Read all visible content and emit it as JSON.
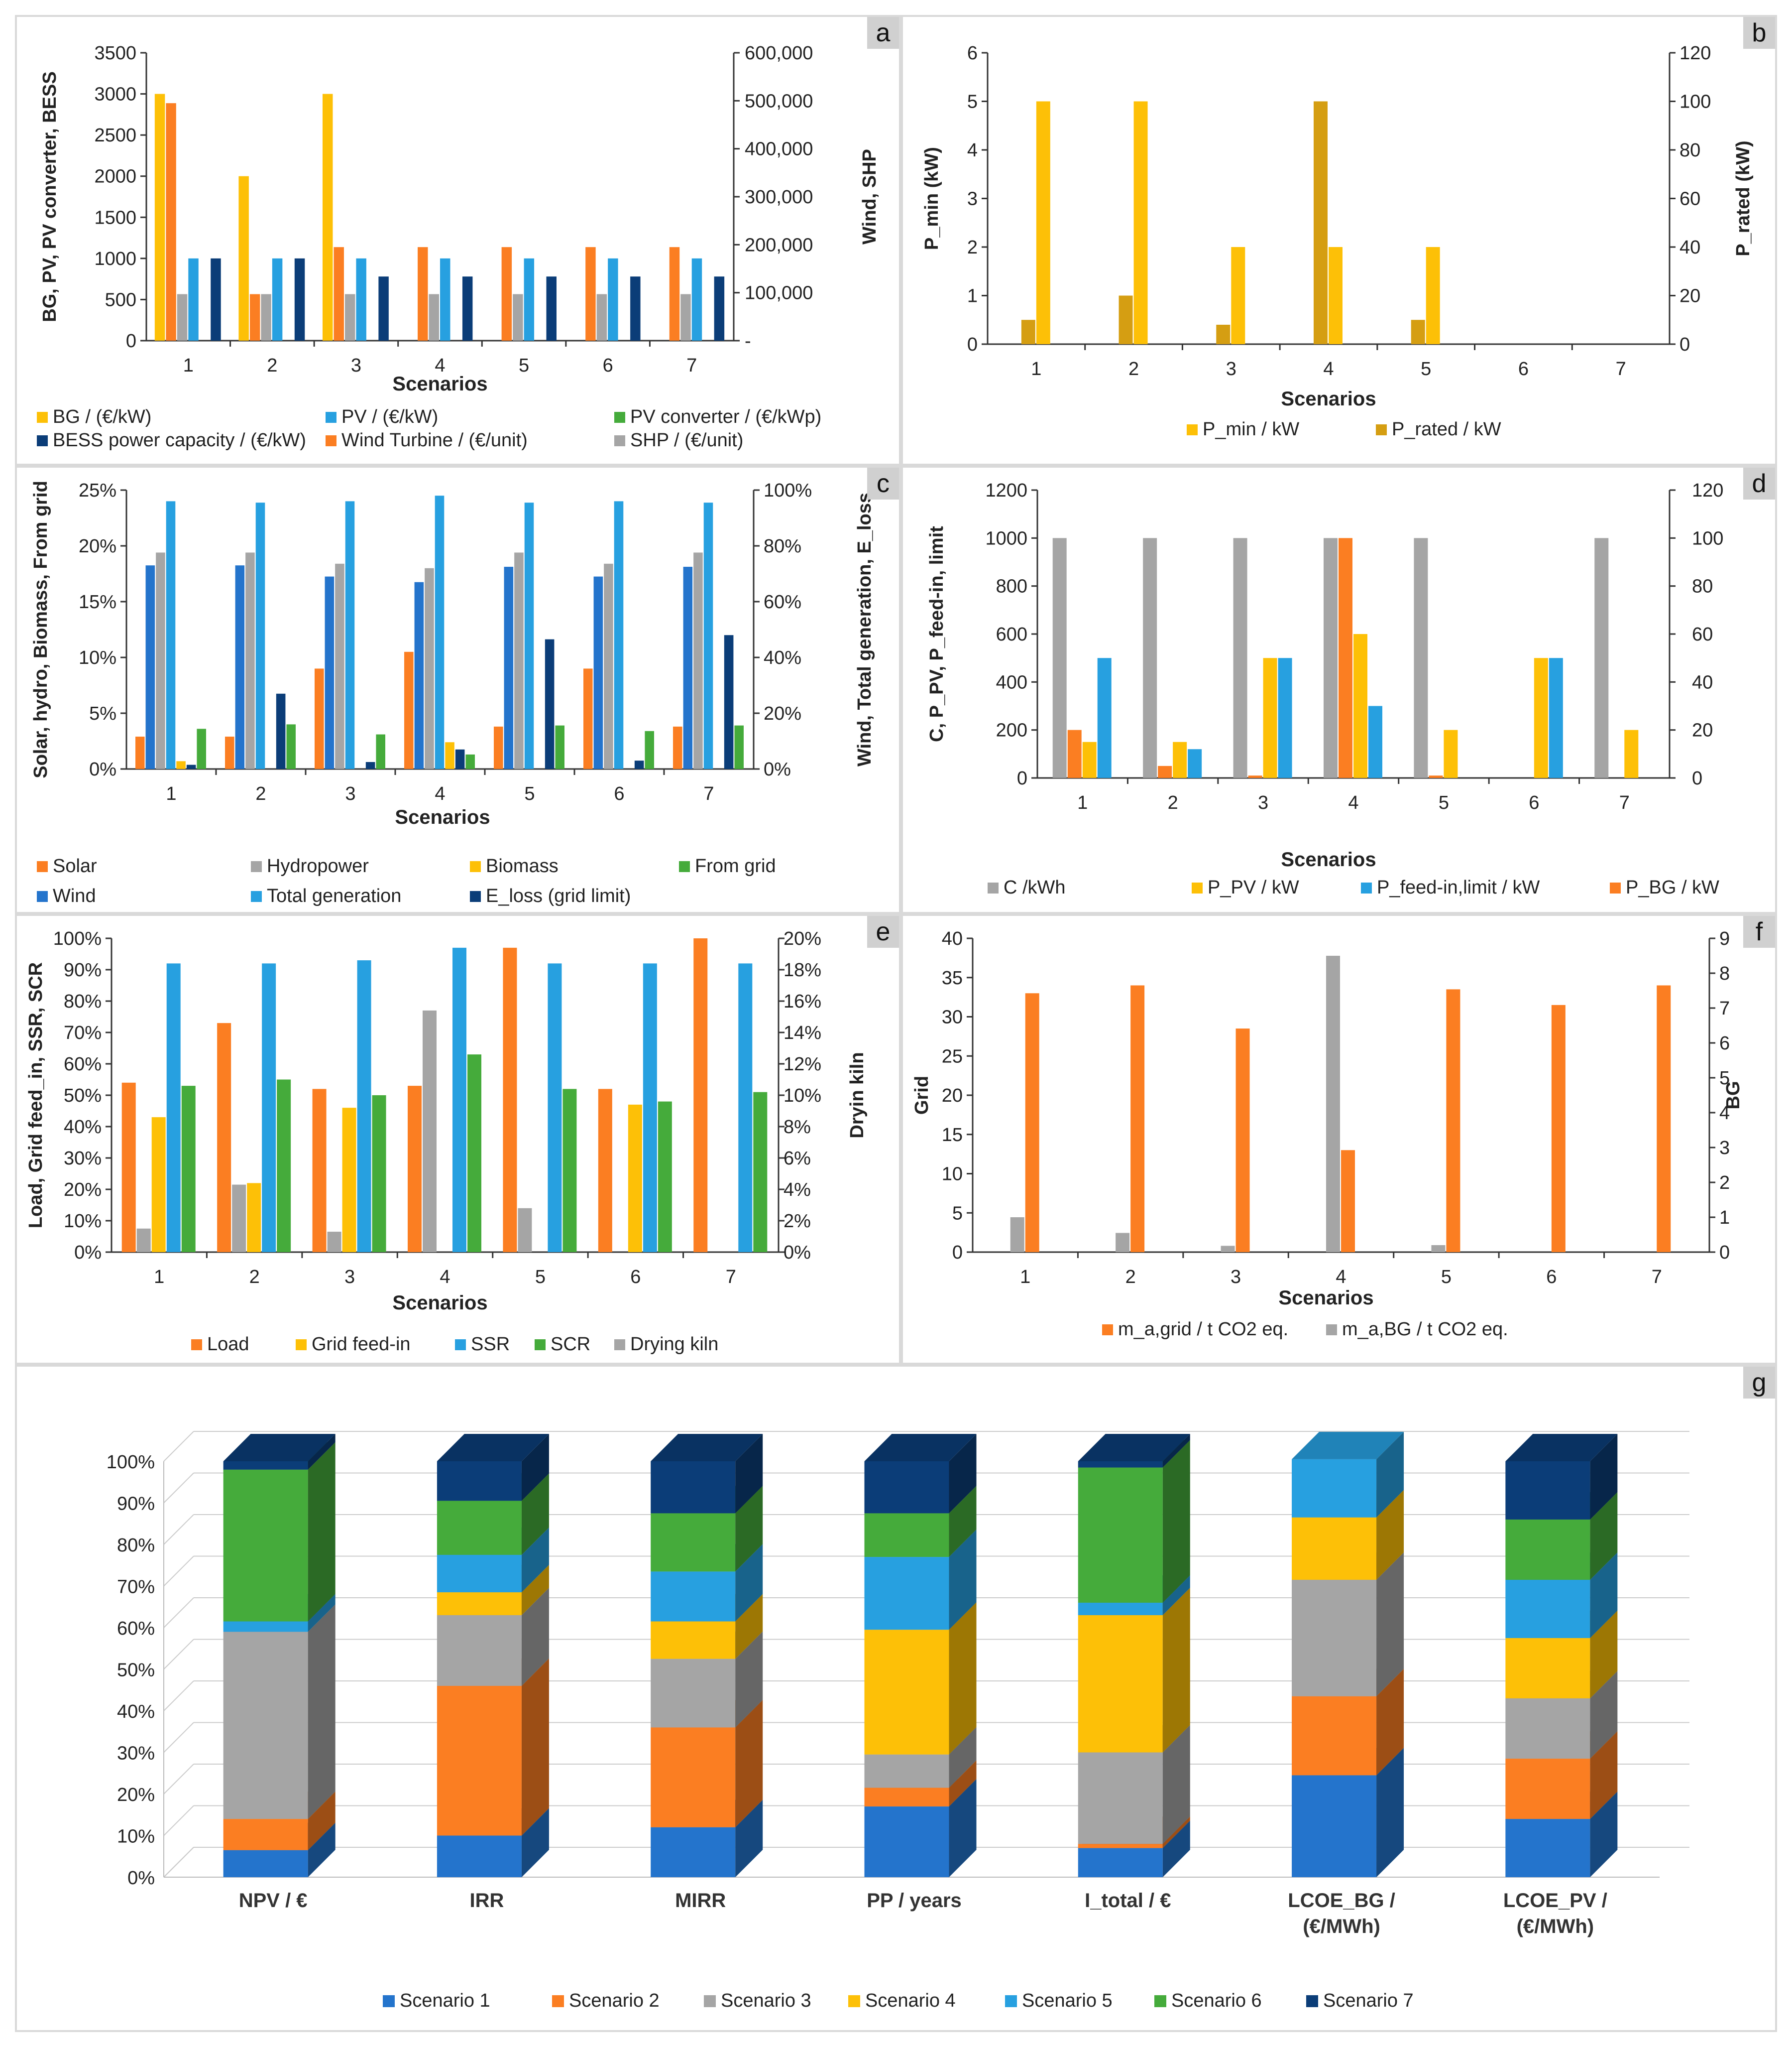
{
  "colors": {
    "orange": "#fb7e22",
    "grey": "#a5a5a5",
    "yellow": "#fdc007",
    "green": "#45ab3b",
    "blue": "#2474cc",
    "lightblue": "#27a0e0",
    "navy": "#0b3d78",
    "mustard": "#d59e12"
  },
  "chart_data": [
    {
      "id": "a",
      "type": "bar",
      "panel_label": "a",
      "xlabel": "Scenarios",
      "ylabel": "BG, PV, PV converter, BESS",
      "y2label": "Wind, SHP",
      "categories": [
        "1",
        "2",
        "3",
        "4",
        "5",
        "6",
        "7"
      ],
      "yticks": [
        "0",
        "500",
        "1000",
        "1500",
        "2000",
        "2500",
        "3000",
        "3500"
      ],
      "ylim": [
        0,
        3500
      ],
      "y2ticks": [
        "-",
        "100,000",
        "200,000",
        "300,000",
        "400,000",
        "500,000",
        "600,000"
      ],
      "y2lim": [
        0,
        600000
      ],
      "series": [
        {
          "name": "BG / (€/kW)",
          "color": "#fdc007",
          "axis": "left",
          "values": [
            3000,
            2000,
            3000,
            0,
            0,
            0,
            0
          ]
        },
        {
          "name": "Wind Turbine / (€/unit)",
          "color": "#fb7e22",
          "axis": "right",
          "values": [
            495000,
            97000,
            195000,
            195000,
            195000,
            195000,
            195000
          ]
        },
        {
          "name": "SHP / (€/unit)",
          "color": "#a5a5a5",
          "axis": "right",
          "values": [
            97000,
            97000,
            97000,
            97000,
            97000,
            97000,
            97000
          ]
        },
        {
          "name": "PV / (€/kW)",
          "color": "#27a0e0",
          "axis": "left",
          "values": [
            1000,
            1000,
            1000,
            1000,
            1000,
            1000,
            1000
          ]
        },
        {
          "name": "PV converter / (€/kWp)",
          "color": "#45ab3b",
          "axis": "left",
          "values": [
            0,
            0,
            0,
            0,
            0,
            0,
            0
          ]
        },
        {
          "name": "BESS power capacity / (€/kW)",
          "color": "#0b3d78",
          "axis": "left",
          "values": [
            1000,
            1000,
            780,
            780,
            780,
            780,
            780
          ]
        }
      ],
      "legend": [
        [
          "BG / (€/kW)",
          "#fdc007"
        ],
        [
          "PV / (€/kW)",
          "#27a0e0"
        ],
        [
          "PV converter / (€/kWp)",
          "#45ab3b"
        ],
        [
          "BESS power capacity / (€/kW)",
          "#0b3d78"
        ],
        [
          "Wind Turbine / (€/unit)",
          "#fb7e22"
        ],
        [
          "SHP / (€/unit)",
          "#a5a5a5"
        ]
      ]
    },
    {
      "id": "b",
      "type": "bar",
      "panel_label": "b",
      "xlabel": "Scenarios",
      "ylabel": "P_min (kW)",
      "y2label": "P_rated (kW)",
      "categories": [
        "1",
        "2",
        "3",
        "4",
        "5",
        "6",
        "7"
      ],
      "yticks": [
        "0",
        "1",
        "2",
        "3",
        "4",
        "5",
        "6"
      ],
      "ylim": [
        0,
        6
      ],
      "y2ticks": [
        "0",
        "20",
        "40",
        "60",
        "80",
        "100",
        "120"
      ],
      "y2lim": [
        0,
        120
      ],
      "series": [
        {
          "name": "P_rated / kW",
          "color": "#d59e12",
          "axis": "right",
          "values": [
            10,
            20,
            8,
            100,
            10,
            0,
            0
          ]
        },
        {
          "name": "P_min / kW",
          "color": "#fdc007",
          "axis": "left",
          "values": [
            5,
            5,
            2,
            2,
            2,
            0,
            0
          ]
        }
      ],
      "legend": [
        [
          "P_min / kW",
          "#fdc007"
        ],
        [
          "P_rated / kW",
          "#d59e12"
        ]
      ]
    },
    {
      "id": "c",
      "type": "bar",
      "panel_label": "c",
      "xlabel": "Scenarios",
      "ylabel": "Solar, hydro, Biomass, From grid",
      "y2label": "Wind, Total generation, E_loss",
      "categories": [
        "1",
        "2",
        "3",
        "4",
        "5",
        "6",
        "7"
      ],
      "yticks": [
        "0%",
        "5%",
        "10%",
        "15%",
        "20%",
        "25%"
      ],
      "ylim": [
        0,
        25
      ],
      "y2ticks": [
        "0%",
        "20%",
        "40%",
        "60%",
        "80%",
        "100%"
      ],
      "y2lim": [
        0,
        100
      ],
      "series": [
        {
          "name": "Solar",
          "color": "#fb7e22",
          "axis": "left",
          "values": [
            2.9,
            2.9,
            9,
            10.5,
            3.8,
            9,
            3.8
          ]
        },
        {
          "name": "Wind",
          "color": "#2474cc",
          "axis": "right",
          "values": [
            73,
            73,
            69,
            67,
            72.5,
            69,
            72.5
          ]
        },
        {
          "name": "Hydropower",
          "color": "#a5a5a5",
          "axis": "left",
          "values": [
            19.4,
            19.4,
            18.4,
            18,
            19.4,
            18.4,
            19.4
          ]
        },
        {
          "name": "Total generation",
          "color": "#27a0e0",
          "axis": "right",
          "values": [
            96,
            95.5,
            96,
            98,
            95.5,
            96,
            95.5
          ]
        },
        {
          "name": "Biomass",
          "color": "#fdc007",
          "axis": "left",
          "values": [
            0.7,
            0,
            0,
            2.4,
            0,
            0,
            0
          ]
        },
        {
          "name": "E_loss (grid limit)",
          "color": "#0b3d78",
          "axis": "right",
          "values": [
            1.5,
            27,
            2.5,
            7,
            46.5,
            3,
            48
          ]
        },
        {
          "name": "From grid",
          "color": "#45ab3b",
          "axis": "left",
          "values": [
            3.6,
            4,
            3.1,
            1.3,
            3.9,
            3.4,
            3.9
          ]
        }
      ],
      "legend": [
        [
          "Solar",
          "#fb7e22"
        ],
        [
          "Hydropower",
          "#a5a5a5"
        ],
        [
          "Biomass",
          "#fdc007"
        ],
        [
          "From grid",
          "#45ab3b"
        ],
        [
          "Wind",
          "#2474cc"
        ],
        [
          "Total generation",
          "#27a0e0"
        ],
        [
          "E_loss (grid limit)",
          "#0b3d78"
        ]
      ]
    },
    {
      "id": "d",
      "type": "bar",
      "panel_label": "d",
      "xlabel": "Scenarios",
      "ylabel": "C, P_PV, P_feed-in, limit",
      "y2label": "",
      "categories": [
        "1",
        "2",
        "3",
        "4",
        "5",
        "6",
        "7"
      ],
      "yticks": [
        "0",
        "200",
        "400",
        "600",
        "800",
        "1000",
        "1200"
      ],
      "ylim": [
        0,
        1200
      ],
      "y2ticks": [
        "0",
        "20",
        "40",
        "60",
        "80",
        "100",
        "120"
      ],
      "y2lim": [
        0,
        120
      ],
      "series": [
        {
          "name": "C /kWh",
          "color": "#a5a5a5",
          "axis": "left",
          "values": [
            1000,
            1000,
            1000,
            1000,
            1000,
            0,
            1000
          ]
        },
        {
          "name": "P_BG / kW",
          "color": "#fb7e22",
          "axis": "right",
          "values": [
            20,
            5,
            1,
            100,
            1,
            0,
            0
          ]
        },
        {
          "name": "P_PV / kW",
          "color": "#fdc007",
          "axis": "left",
          "values": [
            150,
            150,
            500,
            600,
            200,
            500,
            200
          ]
        },
        {
          "name": "P_feed-in,limit / kW",
          "color": "#27a0e0",
          "axis": "left",
          "values": [
            500,
            120,
            500,
            300,
            0,
            500,
            0
          ]
        }
      ],
      "legend": [
        [
          "C /kWh",
          "#a5a5a5"
        ],
        [
          "P_PV / kW",
          "#fdc007"
        ],
        [
          "P_feed-in,limit / kW",
          "#27a0e0"
        ],
        [
          "P_BG / kW",
          "#fb7e22"
        ]
      ]
    },
    {
      "id": "e",
      "type": "bar",
      "panel_label": "e",
      "xlabel": "Scenarios",
      "ylabel": "Load, Grid feed_in, SSR, SCR",
      "y2label": "Dryin kiln",
      "categories": [
        "1",
        "2",
        "3",
        "4",
        "5",
        "6",
        "7"
      ],
      "yticks": [
        "0%",
        "10%",
        "20%",
        "30%",
        "40%",
        "50%",
        "60%",
        "70%",
        "80%",
        "90%",
        "100%"
      ],
      "ylim": [
        0,
        100
      ],
      "y2ticks": [
        "0%",
        "2%",
        "4%",
        "6%",
        "8%",
        "10%",
        "12%",
        "14%",
        "16%",
        "18%",
        "20%"
      ],
      "y2lim": [
        0,
        20
      ],
      "series": [
        {
          "name": "Load",
          "color": "#fb7e22",
          "axis": "left",
          "values": [
            54,
            73,
            52,
            53,
            97,
            52,
            100
          ]
        },
        {
          "name": "Drying kiln",
          "color": "#a5a5a5",
          "axis": "right",
          "values": [
            1.5,
            4.3,
            1.3,
            15.4,
            2.8,
            0,
            0
          ]
        },
        {
          "name": "Grid feed-in",
          "color": "#fdc007",
          "axis": "left",
          "values": [
            43,
            22,
            46,
            0,
            0,
            47,
            0
          ]
        },
        {
          "name": "SSR",
          "color": "#27a0e0",
          "axis": "left",
          "values": [
            92,
            92,
            93,
            97,
            92,
            92,
            92
          ]
        },
        {
          "name": "SCR",
          "color": "#45ab3b",
          "axis": "left",
          "values": [
            53,
            55,
            50,
            63,
            52,
            48,
            51
          ]
        }
      ],
      "legend": [
        [
          "Load",
          "#fb7e22"
        ],
        [
          "Grid feed-in",
          "#fdc007"
        ],
        [
          "SSR",
          "#27a0e0"
        ],
        [
          "SCR",
          "#45ab3b"
        ],
        [
          "Drying kiln",
          "#a5a5a5"
        ]
      ]
    },
    {
      "id": "f",
      "type": "bar",
      "panel_label": "f",
      "xlabel": "Scenarios",
      "ylabel": "Grid",
      "y2label": "BG",
      "categories": [
        "1",
        "2",
        "3",
        "4",
        "5",
        "6",
        "7"
      ],
      "yticks": [
        "0",
        "5",
        "10",
        "15",
        "20",
        "25",
        "30",
        "35",
        "40"
      ],
      "ylim": [
        0,
        40
      ],
      "y2ticks": [
        "0",
        "1",
        "2",
        "3",
        "4",
        "5",
        "6",
        "7",
        "8",
        "9"
      ],
      "y2lim": [
        0,
        9
      ],
      "series": [
        {
          "name": "m_a,BG / t CO2 eq.",
          "color": "#a5a5a5",
          "axis": "right",
          "values": [
            1.0,
            0.55,
            0.18,
            8.5,
            0.2,
            0,
            0
          ]
        },
        {
          "name": "m_a,grid / t CO2 eq.",
          "color": "#fb7e22",
          "axis": "left",
          "values": [
            33,
            34,
            28.5,
            13,
            33.5,
            31.5,
            34
          ]
        }
      ],
      "legend": [
        [
          "m_a,grid / t CO2 eq.",
          "#fb7e22"
        ],
        [
          "m_a,BG / t CO2 eq.",
          "#a5a5a5"
        ]
      ]
    },
    {
      "id": "g",
      "type": "bar",
      "stacked": true,
      "panel_label": "g",
      "xlabel": "",
      "ylabel": "",
      "categories": [
        "NPV / €",
        "IRR",
        "MIRR",
        "PP / years",
        "I_total / €",
        "LCOE_BG / (€/MWh)",
        "LCOE_PV / (€/MWh)"
      ],
      "yticks": [
        "0%",
        "10%",
        "20%",
        "30%",
        "40%",
        "50%",
        "60%",
        "70%",
        "80%",
        "90%",
        "100%"
      ],
      "ylim": [
        0,
        100
      ],
      "series": [
        {
          "name": "Scenario 1",
          "color": "#2474cc",
          "values": [
            6.5,
            10,
            12,
            17,
            7,
            24.5,
            14
          ]
        },
        {
          "name": "Scenario 2",
          "color": "#fb7e22",
          "values": [
            7.5,
            36,
            24,
            4.5,
            1,
            19,
            14.5
          ]
        },
        {
          "name": "Scenario 3",
          "color": "#a5a5a5",
          "values": [
            45,
            17,
            16.5,
            8,
            22,
            28,
            14.5
          ]
        },
        {
          "name": "Scenario 4",
          "color": "#fdc007",
          "values": [
            0,
            5.5,
            9,
            30,
            33,
            15,
            14.5
          ]
        },
        {
          "name": "Scenario 5",
          "color": "#27a0e0",
          "values": [
            2.5,
            9,
            12,
            17.5,
            3,
            14,
            14
          ]
        },
        {
          "name": "Scenario 6",
          "color": "#45ab3b",
          "values": [
            36.5,
            13,
            14,
            10.5,
            32.5,
            0,
            14.5
          ]
        },
        {
          "name": "Scenario 7",
          "color": "#0b3d78",
          "values": [
            2,
            9.5,
            12.5,
            12.5,
            1.5,
            0,
            14
          ]
        }
      ]
    }
  ]
}
